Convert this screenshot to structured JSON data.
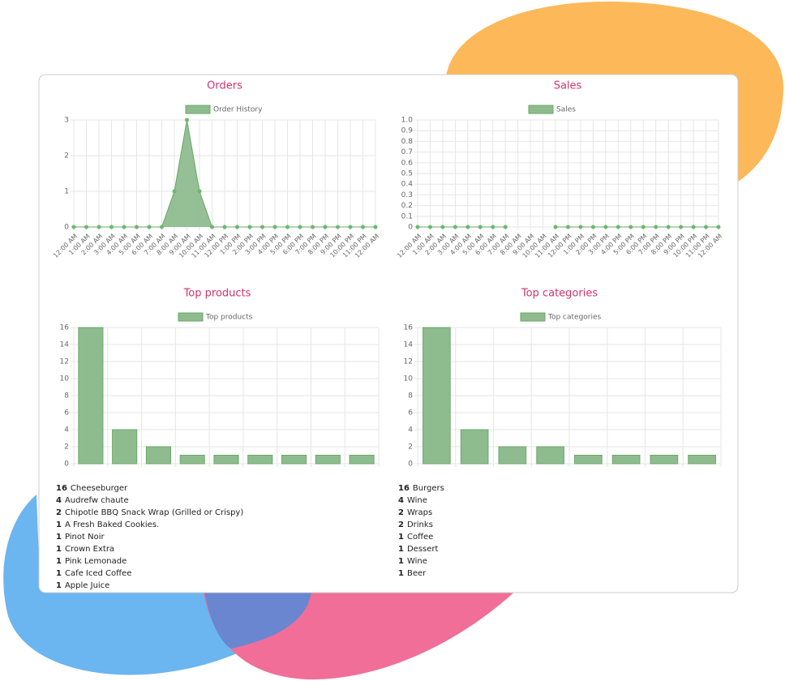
{
  "chart_data": [
    {
      "type": "line",
      "title": "Orders",
      "fill": true,
      "categories": [
        "12:00 AM",
        "1:00 AM",
        "2:00 AM",
        "3:00 AM",
        "4:00 AM",
        "5:00 AM",
        "6:00 AM",
        "7:00 AM",
        "8:00 AM",
        "9:00 AM",
        "10:00 AM",
        "11:00 AM",
        "12:00 PM",
        "1:00 PM",
        "2:00 PM",
        "3:00 PM",
        "4:00 PM",
        "5:00 PM",
        "6:00 PM",
        "7:00 PM",
        "8:00 PM",
        "9:00 PM",
        "10:00 PM",
        "11:00 PM",
        "12:00 AM"
      ],
      "series": [
        {
          "name": "Order History",
          "color": "#8fbc8f",
          "values": [
            0,
            0,
            0,
            0,
            0,
            0,
            0,
            0,
            1,
            3,
            1,
            0,
            0,
            0,
            0,
            0,
            0,
            0,
            0,
            0,
            0,
            0,
            0,
            0,
            0
          ]
        }
      ],
      "ylim": [
        0,
        3
      ],
      "yticks": [
        0,
        1,
        2,
        3
      ],
      "grid": true
    },
    {
      "type": "line",
      "title": "Sales",
      "fill": true,
      "categories": [
        "12:00 AM",
        "1:00 AM",
        "2:00 AM",
        "3:00 AM",
        "4:00 AM",
        "5:00 AM",
        "6:00 AM",
        "7:00 AM",
        "8:00 AM",
        "9:00 AM",
        "10:00 AM",
        "11:00 AM",
        "12:00 PM",
        "1:00 PM",
        "2:00 PM",
        "3:00 PM",
        "4:00 PM",
        "5:00 PM",
        "6:00 PM",
        "7:00 PM",
        "8:00 PM",
        "9:00 PM",
        "10:00 PM",
        "11:00 PM",
        "12:00 AM"
      ],
      "series": [
        {
          "name": "Sales",
          "color": "#8fbc8f",
          "values": [
            0,
            0,
            0,
            0,
            0,
            0,
            0,
            0,
            null,
            null,
            null,
            0,
            0,
            0,
            0,
            0,
            0,
            0,
            0,
            0,
            0,
            0,
            0,
            0,
            0
          ]
        }
      ],
      "ylim": [
        0,
        1
      ],
      "yticks": [
        0,
        0.1,
        0.2,
        0.3,
        0.4,
        0.5,
        0.6,
        0.7,
        0.8,
        0.9,
        {
          "value": 1,
          "label": "1.0"
        }
      ],
      "grid": true
    },
    {
      "type": "bar",
      "title": "Top products",
      "categories": [
        "Cheeseburger",
        "Audrefw chaute",
        "Chipotle BBQ Snack Wrap (Grilled or Crispy)",
        "A Fresh Baked Cookies.",
        "Pinot Noir",
        "Crown Extra",
        "Pink Lemonade",
        "Cafe Iced Coffee",
        "Apple Juice"
      ],
      "series": [
        {
          "name": "Top products",
          "color": "#8fbc8f",
          "values": [
            16,
            4,
            2,
            1,
            1,
            1,
            1,
            1,
            1
          ]
        }
      ],
      "ylim": [
        0,
        16
      ],
      "yticks": [
        0,
        2,
        4,
        6,
        8,
        10,
        12,
        14,
        16
      ],
      "grid": true
    },
    {
      "type": "bar",
      "title": "Top categories",
      "categories": [
        "Burgers",
        "Wine",
        "Wraps",
        "Drinks",
        "Coffee",
        "Dessert",
        "Wine",
        "Beer"
      ],
      "series": [
        {
          "name": "Top categories",
          "color": "#8fbc8f",
          "values": [
            16,
            4,
            2,
            2,
            1,
            1,
            1,
            1
          ]
        }
      ],
      "ylim": [
        0,
        16
      ],
      "yticks": [
        0,
        2,
        4,
        6,
        8,
        10,
        12,
        14,
        16
      ],
      "grid": true
    }
  ]
}
